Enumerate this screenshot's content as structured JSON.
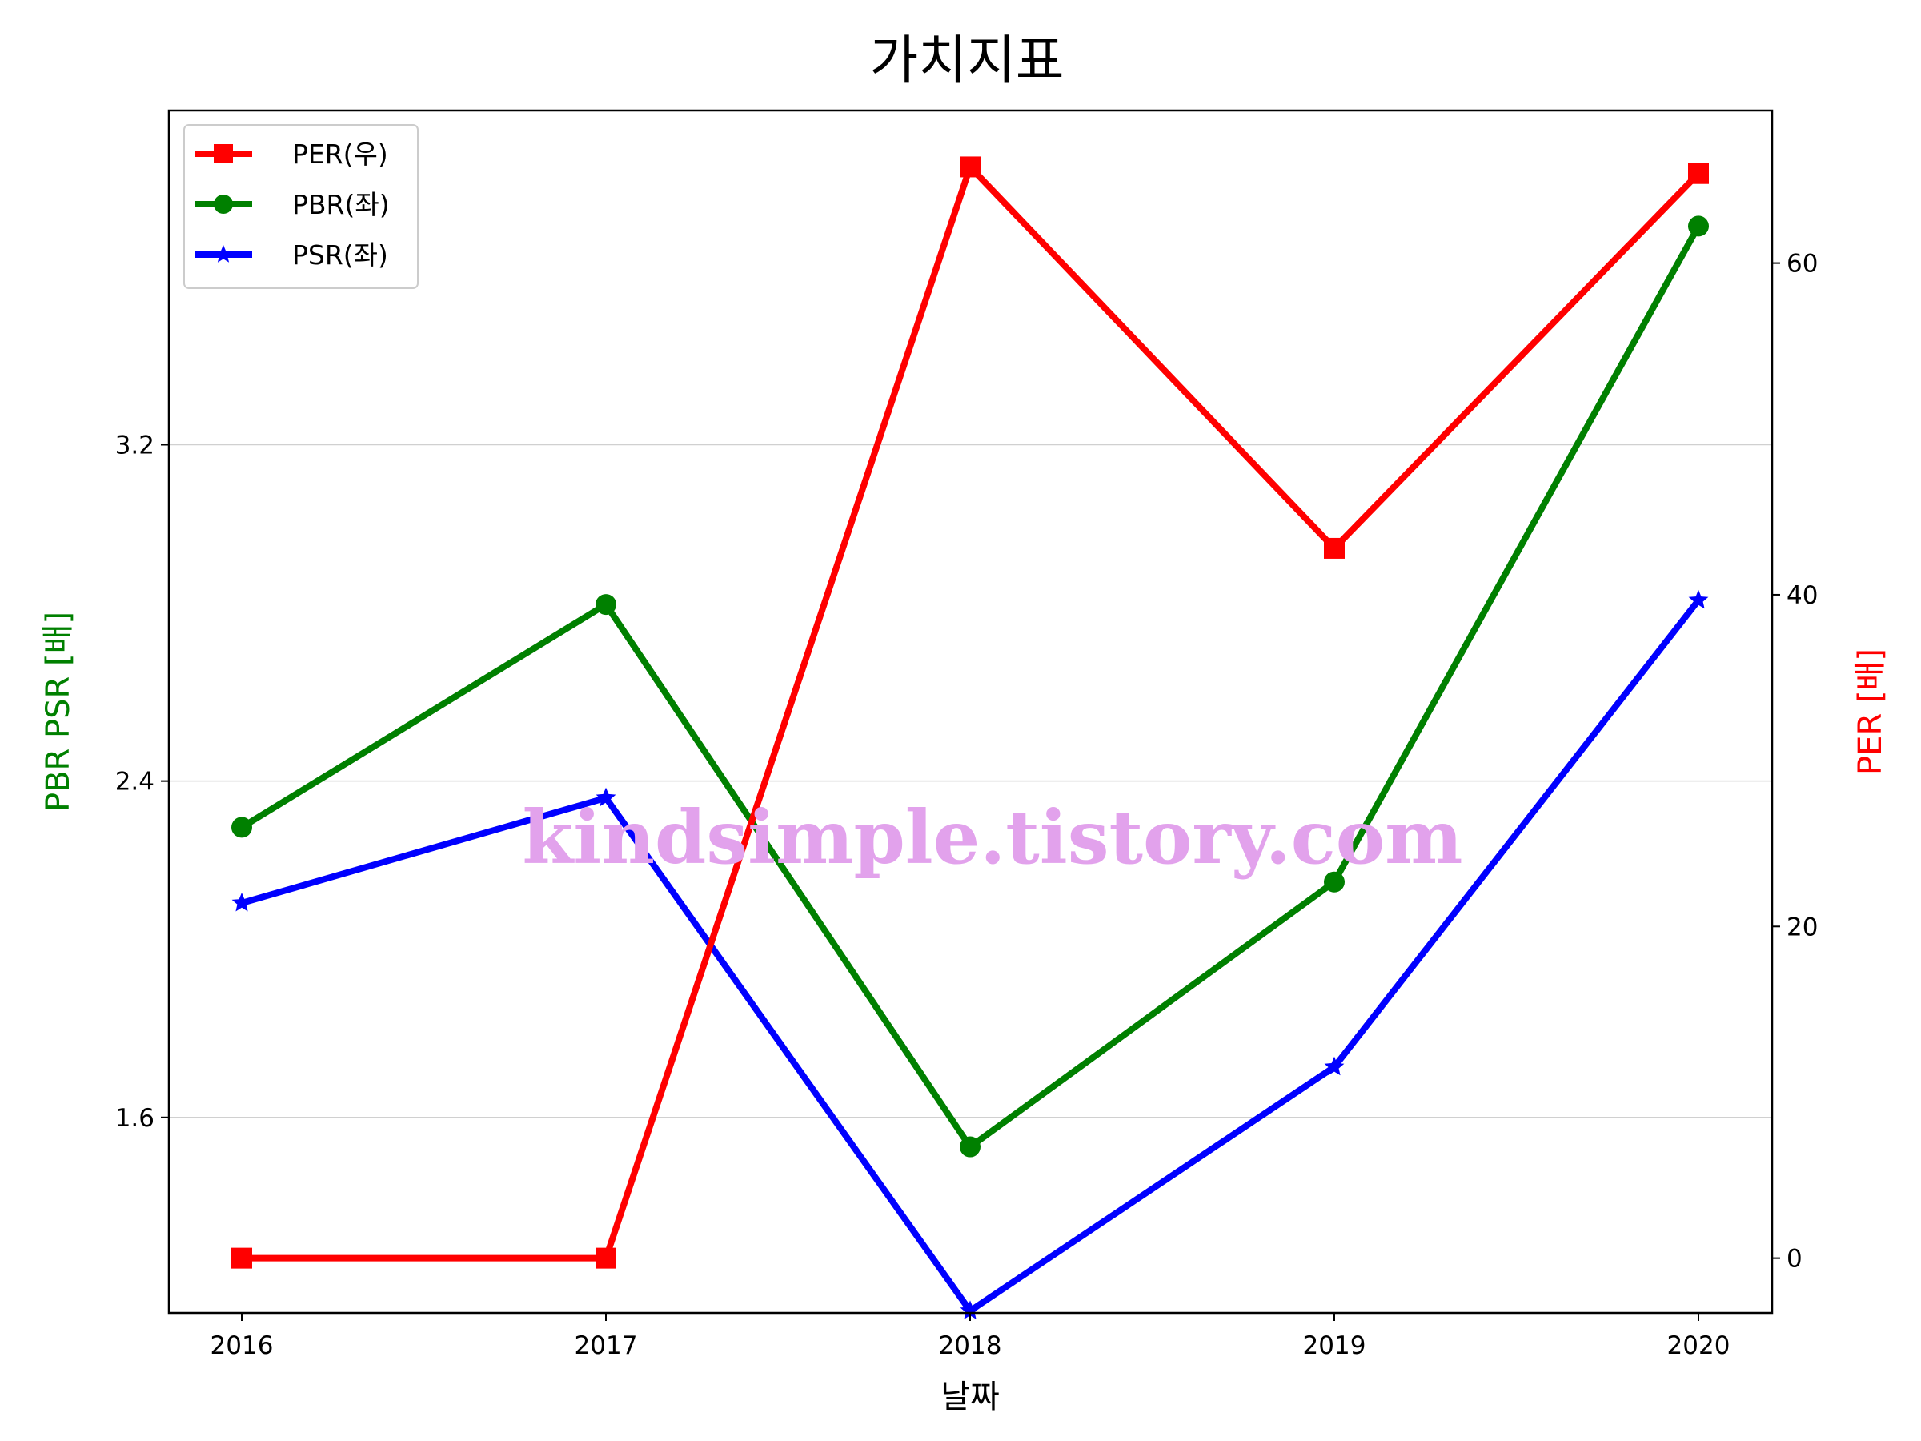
{
  "chart_data": {
    "type": "line",
    "title": "가치지표",
    "xlabel": "날짜",
    "ylabel_left": "PBR PSR [배]",
    "ylabel_right": "PER [배]",
    "categories": [
      "2016",
      "2017",
      "2018",
      "2019",
      "2020"
    ],
    "left_axis": {
      "range": [
        1.135,
        3.995
      ],
      "ticks": [
        "1.6",
        "2.4",
        "3.2"
      ],
      "grid": true
    },
    "right_axis": {
      "range": [
        -3.3,
        69.2
      ],
      "ticks": [
        "0",
        "20",
        "40",
        "60"
      ],
      "grid": false
    },
    "series": [
      {
        "name": "PER(우)",
        "axis": "right",
        "color": "#ff0000",
        "marker": "square",
        "values": [
          0,
          0,
          65.8,
          42.8,
          65.4
        ]
      },
      {
        "name": "PBR(좌)",
        "axis": "left",
        "color": "#008000",
        "marker": "circle",
        "values": [
          2.29,
          2.82,
          1.53,
          2.16,
          3.72
        ]
      },
      {
        "name": "PSR(좌)",
        "axis": "left",
        "color": "#0000ff",
        "marker": "star",
        "values": [
          2.11,
          2.36,
          1.14,
          1.72,
          2.83
        ]
      }
    ],
    "legend": {
      "placement": "top-left"
    }
  },
  "watermark": "kindsimple.tistory.com"
}
